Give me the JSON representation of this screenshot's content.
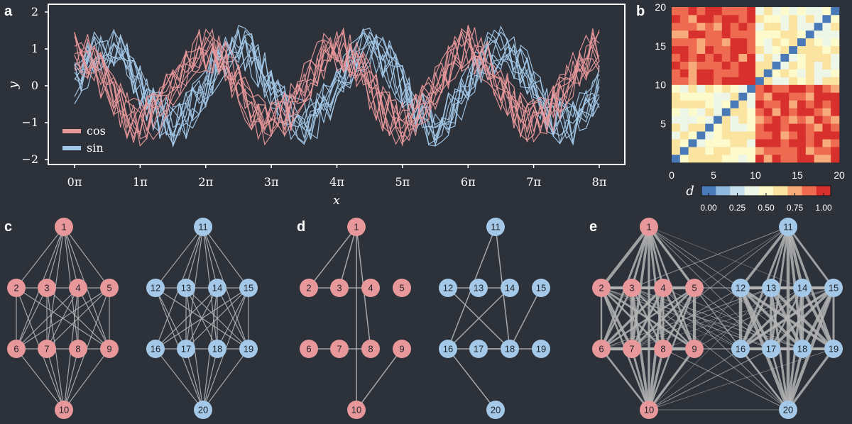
{
  "chart_data": [
    {
      "panel": "a",
      "type": "line",
      "xlabel": "x",
      "ylabel": "y",
      "xlim": [
        0,
        8
      ],
      "ylim": [
        -2,
        2
      ],
      "xticks": [
        0,
        1,
        2,
        3,
        4,
        5,
        6,
        7,
        8
      ],
      "xtick_labels": [
        "0π",
        "1π",
        "2π",
        "3π",
        "4π",
        "5π",
        "6π",
        "7π",
        "8π"
      ],
      "yticks": [
        2,
        1,
        0,
        -1,
        -2
      ],
      "ytick_labels": [
        "2",
        "1",
        "0",
        "−1",
        "−2"
      ],
      "legend": "bottom-left",
      "series": [
        {
          "name": "cos",
          "function": "cos",
          "color": "#e8989a",
          "count": 10,
          "noise_amplitude": 0.5
        },
        {
          "name": "sin",
          "function": "sin",
          "color": "#a3c8e8",
          "count": 10,
          "noise_amplitude": 0.5
        }
      ]
    },
    {
      "panel": "b",
      "type": "heatmap",
      "xticks": [
        0,
        5,
        10,
        15,
        20
      ],
      "yticks": [
        20,
        15,
        10,
        5
      ],
      "xlim": [
        0,
        20
      ],
      "ylim": [
        0,
        20
      ],
      "size": 20,
      "colorbar": {
        "label": "d",
        "ticks": [
          "0.00",
          "0.25",
          "0.50",
          "0.75",
          "1.00"
        ],
        "colors": [
          "#4a79b8",
          "#8fb8dc",
          "#c8e0ee",
          "#eef6e8",
          "#fdfbcc",
          "#fbe3a0",
          "#f7aa7a",
          "#ee6a50",
          "#d8302c"
        ]
      }
    },
    {
      "panel": "c",
      "type": "network",
      "description_hidden": false,
      "groups": [
        {
          "color": "#e8989a",
          "nodes": [
            "1",
            "2",
            "3",
            "4",
            "5",
            "6",
            "7",
            "8",
            "9",
            "10"
          ]
        },
        {
          "color": "#a3c8e8",
          "nodes": [
            "11",
            "12",
            "13",
            "14",
            "15",
            "16",
            "17",
            "18",
            "19",
            "20"
          ]
        }
      ]
    },
    {
      "panel": "d",
      "type": "network",
      "groups": [
        {
          "color": "#e8989a",
          "nodes": [
            "1",
            "2",
            "3",
            "4",
            "5",
            "6",
            "7",
            "8",
            "9",
            "10"
          ]
        },
        {
          "color": "#a3c8e8",
          "nodes": [
            "11",
            "12",
            "13",
            "14",
            "15",
            "16",
            "17",
            "18",
            "19",
            "20"
          ]
        }
      ],
      "edges": [
        [
          1,
          2
        ],
        [
          1,
          3
        ],
        [
          1,
          8
        ],
        [
          1,
          10
        ],
        [
          2,
          3
        ],
        [
          3,
          4
        ],
        [
          6,
          7
        ],
        [
          7,
          8
        ],
        [
          9,
          10
        ],
        [
          11,
          16
        ],
        [
          11,
          18
        ],
        [
          12,
          13
        ],
        [
          12,
          18
        ],
        [
          13,
          14
        ],
        [
          14,
          16
        ],
        [
          15,
          18
        ],
        [
          17,
          19
        ],
        [
          16,
          17
        ],
        [
          17,
          18
        ],
        [
          16,
          20
        ]
      ]
    },
    {
      "panel": "e",
      "type": "network",
      "groups": [
        {
          "color": "#e8989a",
          "nodes": [
            "1",
            "2",
            "3",
            "4",
            "5",
            "6",
            "7",
            "8",
            "9",
            "10"
          ]
        },
        {
          "color": "#a3c8e8",
          "nodes": [
            "11",
            "12",
            "13",
            "14",
            "15",
            "16",
            "17",
            "18",
            "19",
            "20"
          ]
        }
      ]
    }
  ],
  "panels": {
    "a": "a",
    "b": "b",
    "c": "c",
    "d": "d",
    "e": "e"
  }
}
